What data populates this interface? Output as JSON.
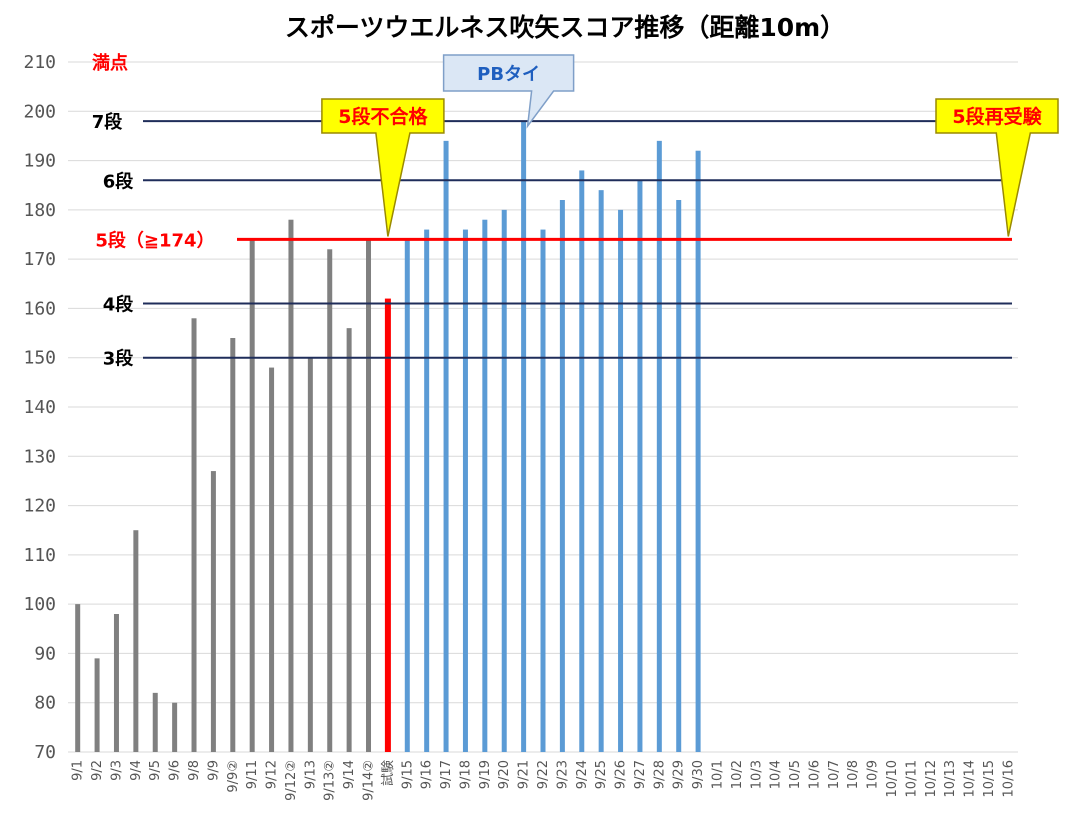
{
  "chart_data": {
    "type": "bar",
    "title": "スポーツウエルネス吹矢スコア推移（距離10m）",
    "ylim": [
      70,
      210
    ],
    "yticks": [
      70,
      80,
      90,
      100,
      110,
      120,
      130,
      140,
      150,
      160,
      170,
      180,
      190,
      200,
      210
    ],
    "grid": true,
    "categories": [
      "9/1",
      "9/2",
      "9/3",
      "9/4",
      "9/5",
      "9/6",
      "9/8",
      "9/9",
      "9/9②",
      "9/11",
      "9/12",
      "9/12②",
      "9/13",
      "9/13②",
      "9/14",
      "9/14②",
      "試験",
      "9/15",
      "9/16",
      "9/17",
      "9/18",
      "9/19",
      "9/20",
      "9/21",
      "9/22",
      "9/23",
      "9/24",
      "9/25",
      "9/26",
      "9/27",
      "9/28",
      "9/29",
      "9/30",
      "10/1",
      "10/2",
      "10/3",
      "10/4",
      "10/5",
      "10/6",
      "10/7",
      "10/8",
      "10/9",
      "10/10",
      "10/11",
      "10/12",
      "10/13",
      "10/14",
      "10/15",
      "10/16"
    ],
    "values": [
      100,
      89,
      98,
      115,
      82,
      80,
      158,
      127,
      154,
      174,
      148,
      178,
      150,
      172,
      156,
      174,
      162,
      174,
      176,
      194,
      176,
      178,
      180,
      198,
      176,
      182,
      188,
      184,
      180,
      186,
      194,
      182,
      192,
      null,
      null,
      null,
      null,
      null,
      null,
      null,
      null,
      null,
      null,
      null,
      null,
      null,
      null,
      null,
      null
    ],
    "bar_colors": {
      "practice": "#808080",
      "exam": "#ff0000",
      "after": "#5b9bd5"
    },
    "reference_lines": [
      {
        "label": "満点",
        "value": 210,
        "color": "#ff0000",
        "line": false
      },
      {
        "label": "7段",
        "value": 198,
        "color": "#1f2d5a",
        "line": true
      },
      {
        "label": "6段",
        "value": 186,
        "color": "#1f2d5a",
        "line": true
      },
      {
        "label": "5段（≧174）",
        "value": 174,
        "color": "#ff0000",
        "line": true
      },
      {
        "label": "4段",
        "value": 161,
        "color": "#1f2d5a",
        "line": true
      },
      {
        "label": "3段",
        "value": 150,
        "color": "#1f2d5a",
        "line": true
      }
    ],
    "annotations": [
      {
        "text": "5段不合格",
        "target_category": "試験",
        "style": "yellow-callout"
      },
      {
        "text": "5段再受験",
        "target_category": "10/16",
        "style": "yellow-callout"
      },
      {
        "text": "PBタイ",
        "target_category": "9/21",
        "style": "blue-callout"
      }
    ]
  }
}
